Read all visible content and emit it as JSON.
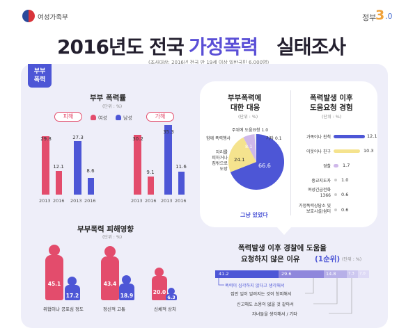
{
  "header": {
    "ministry": "여성가족부",
    "gov_logo_prefix": "정부",
    "gov_logo_num": "3",
    "gov_logo_suffix": ".0"
  },
  "title": {
    "part1": "2016년도 전국",
    "part2": "가정폭력",
    "part3": "실태조사"
  },
  "subtitle": "(조사대상: 2016년 전국 만 19세 이상 일반국민 6,000명)",
  "badge": {
    "line1": "부부",
    "line2": "폭력"
  },
  "colors": {
    "female": "#e34c6c",
    "male": "#4d56d6",
    "accent": "#5a4fd6",
    "panel": "#eeeef9"
  },
  "rate_section": {
    "title": "부부 폭력률",
    "unit": "(단위 : %)",
    "legend": [
      {
        "label": "여성",
        "icon": "female-icon"
      },
      {
        "label": "남성",
        "icon": "male-icon"
      }
    ],
    "groups": [
      {
        "label": "피해",
        "female_2013": "29.8",
        "female_2016": "12.1",
        "male_2013": "27.3",
        "male_2016": "8.6"
      },
      {
        "label": "가해",
        "female_2013": "30.2",
        "female_2016": "9.1",
        "male_2013": "35.3",
        "male_2016": "11.6"
      }
    ],
    "years": [
      "2013",
      "2016"
    ]
  },
  "response_section": {
    "title_l1": "부부폭력에",
    "title_l2": "대한 대응",
    "unit": "(단위 : %)",
    "slices": [
      {
        "label": "그냥 있었다",
        "value": "66.6"
      },
      {
        "label_l1": "자리를",
        "label_l2": "피하거나",
        "label_l3": "집밖으로",
        "label_l4": "도망",
        "value": "24.1"
      },
      {
        "label": "함께 폭력행사",
        "value": "8.1"
      },
      {
        "label": "주위에 도움요청",
        "value": "1.0"
      },
      {
        "label": "기타",
        "value": "0.1"
      }
    ]
  },
  "help_section": {
    "title_l1": "폭력발생 이후",
    "title_l2": "도움요청 경험",
    "unit": "(단위 : %)",
    "items": [
      {
        "label": "가족이나 친척",
        "value": "12.1"
      },
      {
        "label": "이웃이나 친구",
        "value": "10.3"
      },
      {
        "label": "경찰",
        "value": "1.7"
      },
      {
        "label": "종교지도자",
        "value": "1.0"
      },
      {
        "label_l1": "여성긴급전화",
        "label_l2": "1366",
        "value": "0.6"
      },
      {
        "label_l1": "가정폭력상담소 및",
        "label_l2": "보호시설/쉼터",
        "value": "0.6"
      }
    ]
  },
  "effect_section": {
    "title": "부부폭력 피해영향",
    "unit": "(단위 : %)",
    "items": [
      {
        "label": "위협이나 공포심 정도",
        "female": "45.1",
        "male": "17.2"
      },
      {
        "label": "정신적 고통",
        "female": "43.4",
        "male": "18.9"
      },
      {
        "label": "신체적 상처",
        "female": "20.0",
        "male": "6.3"
      }
    ]
  },
  "reason_section": {
    "title_l1": "폭력발생 이후 경찰에 도움을",
    "title_l2a": "요청하지 않은 이유",
    "title_l2b": "(1순위)",
    "unit": "(단위 : %)",
    "segments": [
      {
        "value": "41.2",
        "label": "폭력이 심각하지 않다고 생각해서"
      },
      {
        "value": "29.6",
        "label": "집안 일이 알려지는 것이 창피해서"
      },
      {
        "value": "14.8",
        "label": "신고해도 소용이 없을 것 같아서"
      },
      {
        "value": "7.3",
        "label": "자녀들을 생각해서 / 기타"
      },
      {
        "value": "7.0",
        "label": ""
      }
    ]
  }
}
